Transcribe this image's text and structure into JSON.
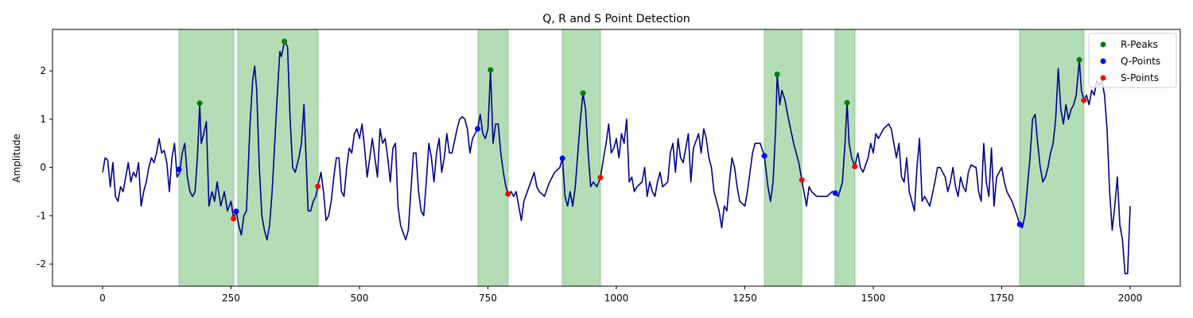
{
  "chart_data": {
    "type": "line",
    "title": "Q, R and S Point Detection",
    "ylabel": "Amplitude",
    "xlim": [
      -97.5,
      2097.5
    ],
    "ylim": [
      -2.46,
      2.86
    ],
    "xticks": [
      0,
      250,
      500,
      750,
      1000,
      1250,
      1500,
      1750,
      2000
    ],
    "yticks": [
      -2,
      -1,
      0,
      1,
      2
    ],
    "legend": "upper right",
    "span_color": "#4caf50",
    "spans": [
      [
        148.6,
        255.4
      ],
      [
        263,
        419.5
      ],
      [
        730.7,
        789.5
      ],
      [
        894.7,
        969
      ],
      [
        1288,
        1360.7
      ],
      [
        1425.7,
        1464.4
      ],
      [
        1784.8,
        1910.2
      ]
    ],
    "x": [
      0,
      5,
      10,
      15,
      20,
      25,
      30,
      35,
      40,
      45,
      50,
      55,
      60,
      65,
      70,
      75,
      80,
      85,
      90,
      95,
      100,
      105,
      110,
      115,
      120,
      125,
      130,
      135,
      140,
      145,
      150,
      155,
      160,
      165,
      170,
      175,
      180,
      185,
      189,
      192,
      197,
      202,
      207,
      213,
      218,
      223,
      230,
      237,
      243,
      250,
      255,
      260,
      265,
      270,
      275,
      280,
      287,
      292,
      296,
      300,
      305,
      310,
      315,
      320,
      325,
      330,
      335,
      340,
      345,
      348,
      352,
      354,
      360,
      365,
      370,
      375,
      382,
      387,
      392,
      396,
      400,
      405,
      410,
      415,
      419,
      425,
      430,
      435,
      440,
      445,
      450,
      455,
      460,
      465,
      470,
      475,
      480,
      485,
      490,
      495,
      500,
      505,
      510,
      515,
      520,
      525,
      530,
      535,
      540,
      545,
      550,
      555,
      560,
      565,
      570,
      575,
      580,
      590,
      595,
      600,
      605,
      610,
      615,
      620,
      625,
      630,
      635,
      640,
      645,
      650,
      655,
      660,
      665,
      670,
      675,
      680,
      690,
      695,
      700,
      705,
      710,
      715,
      720,
      725,
      730,
      735,
      740,
      745,
      750,
      755,
      760,
      765,
      770,
      775,
      780,
      785,
      789,
      795,
      800,
      805,
      810,
      815,
      820,
      830,
      840,
      845,
      850,
      860,
      870,
      880,
      890,
      895,
      900,
      905,
      910,
      915,
      920,
      925,
      930,
      935,
      940,
      945,
      950,
      955,
      962,
      969,
      975,
      980,
      985,
      990,
      995,
      1000,
      1005,
      1010,
      1015,
      1020,
      1025,
      1030,
      1035,
      1040,
      1050,
      1055,
      1060,
      1065,
      1070,
      1075,
      1080,
      1085,
      1090,
      1100,
      1105,
      1110,
      1115,
      1120,
      1125,
      1130,
      1140,
      1145,
      1150,
      1160,
      1165,
      1170,
      1175,
      1180,
      1185,
      1190,
      1200,
      1205,
      1210,
      1215,
      1220,
      1225,
      1230,
      1235,
      1240,
      1250,
      1255,
      1260,
      1265,
      1270,
      1280,
      1288,
      1295,
      1300,
      1305,
      1310,
      1313,
      1318,
      1322,
      1328,
      1335,
      1345,
      1355,
      1361,
      1365,
      1370,
      1375,
      1380,
      1390,
      1400,
      1410,
      1420,
      1426,
      1432,
      1440,
      1445,
      1449,
      1453,
      1458,
      1464,
      1470,
      1475,
      1480,
      1490,
      1495,
      1500,
      1505,
      1510,
      1520,
      1530,
      1535,
      1540,
      1545,
      1550,
      1555,
      1560,
      1565,
      1570,
      1575,
      1580,
      1585,
      1590,
      1595,
      1600,
      1610,
      1620,
      1625,
      1630,
      1640,
      1645,
      1650,
      1655,
      1660,
      1665,
      1670,
      1675,
      1680,
      1685,
      1690,
      1700,
      1705,
      1710,
      1715,
      1720,
      1725,
      1730,
      1735,
      1740,
      1750,
      1755,
      1760,
      1770,
      1780,
      1785,
      1790,
      1795,
      1800,
      1805,
      1810,
      1815,
      1820,
      1825,
      1830,
      1835,
      1840,
      1845,
      1850,
      1855,
      1860,
      1865,
      1870,
      1875,
      1880,
      1885,
      1890,
      1895,
      1901,
      1905,
      1910,
      1915,
      1920,
      1925,
      1930,
      1935,
      1940,
      1945,
      1950,
      1955,
      1960,
      1965,
      1970,
      1975,
      1980,
      1985,
      1990,
      1995,
      2000
    ],
    "series": [
      {
        "color": "#00008b",
        "values": [
          -0.1,
          0.2,
          0.15,
          -0.4,
          0.1,
          -0.6,
          -0.7,
          -0.4,
          -0.5,
          -0.2,
          0.1,
          -0.3,
          -0.1,
          -0.2,
          0.1,
          -0.8,
          -0.5,
          -0.3,
          0.0,
          0.2,
          0.1,
          0.3,
          0.6,
          0.3,
          0.35,
          0.1,
          -0.5,
          0.2,
          0.5,
          -0.2,
          -0.1,
          0.3,
          0.5,
          -0.2,
          -0.5,
          -0.6,
          -0.5,
          0.3,
          1.33,
          0.5,
          0.7,
          0.95,
          -0.8,
          -0.5,
          -0.7,
          -0.3,
          -0.8,
          -0.5,
          -0.9,
          -0.7,
          -1.06,
          -0.91,
          -1.2,
          -1.4,
          -1.0,
          -0.9,
          0.9,
          1.8,
          2.1,
          1.6,
          0.0,
          -1.0,
          -1.3,
          -1.5,
          -1.2,
          -0.5,
          0.5,
          1.5,
          2.4,
          2.3,
          2.5,
          2.61,
          2.5,
          1.0,
          0.0,
          -0.1,
          0.2,
          0.5,
          1.3,
          0.2,
          -0.9,
          -0.9,
          -0.7,
          -0.6,
          -0.39,
          -0.1,
          -0.5,
          -1.1,
          -1.0,
          -0.7,
          -0.2,
          0.2,
          0.2,
          -0.5,
          -0.6,
          0.0,
          0.4,
          0.3,
          0.7,
          0.8,
          0.6,
          0.9,
          0.4,
          -0.2,
          0.2,
          0.6,
          0.2,
          -0.2,
          0.8,
          0.5,
          0.6,
          0.2,
          -0.3,
          0.4,
          0.5,
          -0.8,
          -1.2,
          -1.5,
          -1.3,
          -0.5,
          0.3,
          0.3,
          -0.5,
          -0.9,
          -1.0,
          -0.3,
          0.5,
          0.2,
          -0.3,
          0.3,
          0.6,
          -0.1,
          0.2,
          0.7,
          0.3,
          0.3,
          0.8,
          1.0,
          1.05,
          1.0,
          0.8,
          0.3,
          0.6,
          0.7,
          0.8,
          1.1,
          0.7,
          0.6,
          0.8,
          2.02,
          0.5,
          0.9,
          0.9,
          0.3,
          -0.1,
          -0.4,
          -0.55,
          -0.5,
          -0.6,
          -0.5,
          -0.8,
          -1.1,
          -0.7,
          -0.4,
          -0.1,
          -0.4,
          -0.5,
          -0.6,
          -0.3,
          -0.1,
          0.0,
          0.19,
          -0.6,
          -0.8,
          -0.5,
          -0.8,
          -0.4,
          0.3,
          1.0,
          1.54,
          1.2,
          0.3,
          -0.4,
          -0.3,
          -0.4,
          -0.21,
          0.2,
          0.5,
          0.9,
          0.3,
          0.4,
          0.6,
          0.2,
          0.7,
          0.5,
          1.0,
          -0.3,
          -0.2,
          -0.5,
          -0.4,
          -0.3,
          0.0,
          -0.6,
          -0.3,
          -0.5,
          -0.6,
          -0.3,
          -0.1,
          -0.4,
          -0.3,
          0.3,
          0.5,
          -0.1,
          0.6,
          0.2,
          0.1,
          0.7,
          -0.3,
          0.4,
          0.7,
          0.3,
          0.8,
          0.6,
          0.2,
          0.0,
          -0.5,
          -0.9,
          -1.25,
          -0.8,
          -0.9,
          -0.3,
          0.2,
          0.0,
          -0.4,
          -0.7,
          -0.8,
          -0.5,
          -0.1,
          0.3,
          0.5,
          0.5,
          0.24,
          -0.4,
          -0.7,
          -0.3,
          0.8,
          1.93,
          1.3,
          1.6,
          1.4,
          1.0,
          0.5,
          0.1,
          -0.26,
          -0.5,
          -0.8,
          -0.4,
          -0.5,
          -0.6,
          -0.6,
          -0.6,
          -0.5,
          -0.53,
          -0.6,
          -0.3,
          0.5,
          1.34,
          0.5,
          0.2,
          0.02,
          0.3,
          0.0,
          -0.1,
          0.2,
          0.5,
          0.3,
          0.7,
          0.6,
          0.8,
          0.9,
          0.8,
          0.5,
          0.2,
          0.5,
          -0.2,
          -0.3,
          0.2,
          -0.5,
          -0.7,
          -0.9,
          0.0,
          0.6,
          -0.7,
          -0.6,
          -0.8,
          -0.3,
          0.0,
          0.0,
          -0.2,
          -0.5,
          -0.3,
          0.0,
          -0.4,
          -0.6,
          -0.2,
          -0.4,
          -0.5,
          -0.1,
          0.05,
          0.0,
          -0.5,
          -0.7,
          0.5,
          -0.3,
          -0.6,
          0.4,
          -0.8,
          -0.2,
          0.0,
          -0.3,
          -0.5,
          -0.7,
          -1.0,
          -1.18,
          -1.25,
          -1.0,
          -0.4,
          0.2,
          1.0,
          1.1,
          0.5,
          0.0,
          -0.3,
          -0.2,
          0.0,
          0.3,
          0.5,
          1.0,
          2.05,
          1.2,
          0.9,
          1.3,
          1.0,
          1.2,
          1.3,
          1.5,
          2.23,
          1.6,
          1.39,
          1.5,
          1.3,
          1.6,
          1.5,
          1.8,
          1.7,
          1.8,
          1.5,
          0.8,
          -0.5,
          -1.3,
          -0.8,
          -0.2,
          -1.2,
          -1.5,
          -2.2,
          -2.2,
          -0.8
        ]
      }
    ],
    "markers": [
      {
        "name": "R-Peaks",
        "color": "#008000",
        "x": [
          189,
          354,
          755,
          935,
          1313,
          1449,
          1901
        ],
        "values": [
          1.33,
          2.61,
          2.02,
          1.54,
          1.93,
          1.34,
          2.23
        ]
      },
      {
        "name": "Q-Points",
        "color": "#0000ff",
        "x": [
          148.6,
          260,
          730,
          895,
          1288,
          1426,
          1785
        ],
        "values": [
          -0.04,
          -0.91,
          0.8,
          0.19,
          0.24,
          -0.53,
          -1.18
        ]
      },
      {
        "name": "S-Points",
        "color": "#ff0000",
        "x": [
          255,
          419,
          789,
          969,
          1361,
          1464,
          1910
        ],
        "values": [
          -1.06,
          -0.39,
          -0.55,
          -0.21,
          -0.26,
          0.02,
          1.39
        ]
      }
    ]
  }
}
